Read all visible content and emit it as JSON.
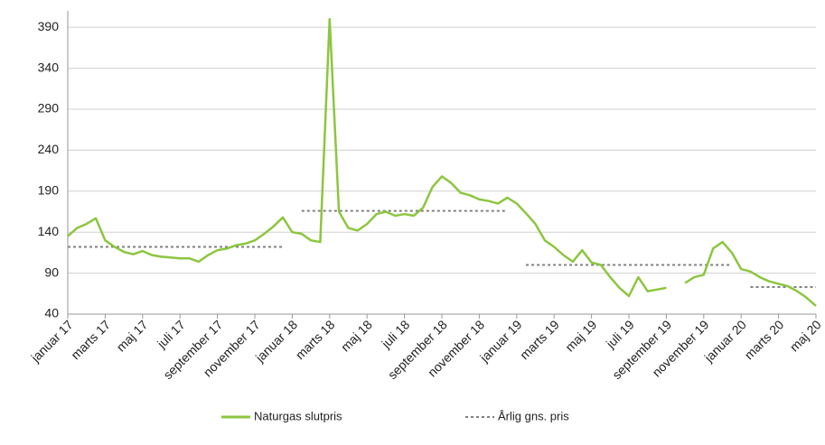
{
  "chart_data": {
    "type": "line",
    "categories": [
      "januar 17",
      null,
      null,
      null,
      "marts 17",
      null,
      null,
      null,
      "maj 17",
      null,
      null,
      null,
      "juli 17",
      null,
      null,
      null,
      "september 17",
      null,
      null,
      null,
      "november 17",
      null,
      null,
      null,
      "januar 18",
      null,
      null,
      null,
      "marts 18",
      null,
      null,
      null,
      "maj 18",
      null,
      null,
      null,
      "juli 18",
      null,
      null,
      null,
      "september 18",
      null,
      null,
      null,
      "november 18",
      null,
      null,
      null,
      "januar 19",
      null,
      null,
      null,
      "marts 19",
      null,
      null,
      null,
      "maj 19",
      null,
      null,
      null,
      "juli 19",
      null,
      null,
      null,
      "september 19",
      null,
      null,
      null,
      "november 19",
      null,
      null,
      null,
      "januar 20",
      null,
      null,
      null,
      "marts 20",
      null,
      null,
      null,
      "maj 20"
    ],
    "series": [
      {
        "name": "Naturgas slutpris",
        "color": "#8cc63f",
        "style": "solid",
        "values": [
          135,
          145,
          150,
          157,
          130,
          122,
          116,
          113,
          117,
          112,
          110,
          109,
          108,
          108,
          104,
          112,
          118,
          120,
          124,
          126,
          130,
          138,
          147,
          158,
          140,
          138,
          130,
          128,
          400,
          165,
          145,
          142,
          150,
          162,
          165,
          160,
          162,
          160,
          170,
          195,
          208,
          200,
          188,
          185,
          180,
          178,
          175,
          182,
          175,
          163,
          150,
          130,
          122,
          112,
          104,
          118,
          103,
          100,
          85,
          72,
          62,
          85,
          68,
          70,
          72,
          null,
          78,
          85,
          88,
          120,
          128,
          115,
          95,
          92,
          85,
          80,
          77,
          74,
          68,
          60,
          50
        ]
      },
      {
        "name": "Årlig gns. pris",
        "color": "#808080",
        "style": "dotted",
        "values": [
          122,
          122,
          122,
          122,
          122,
          122,
          122,
          122,
          122,
          122,
          122,
          122,
          122,
          122,
          122,
          122,
          122,
          122,
          122,
          122,
          122,
          122,
          122,
          122,
          null,
          166,
          166,
          166,
          166,
          166,
          166,
          166,
          166,
          166,
          166,
          166,
          166,
          166,
          166,
          166,
          166,
          166,
          166,
          166,
          166,
          166,
          166,
          166,
          null,
          100,
          100,
          100,
          100,
          100,
          100,
          100,
          100,
          100,
          100,
          100,
          100,
          100,
          100,
          100,
          100,
          100,
          100,
          100,
          100,
          100,
          100,
          100,
          null,
          73,
          73,
          73,
          73,
          73,
          73,
          73,
          73
        ]
      }
    ],
    "ylim": [
      40,
      410
    ],
    "yticks": [
      40,
      90,
      140,
      190,
      240,
      290,
      340,
      390
    ],
    "grid": true,
    "legend": "bottom"
  }
}
